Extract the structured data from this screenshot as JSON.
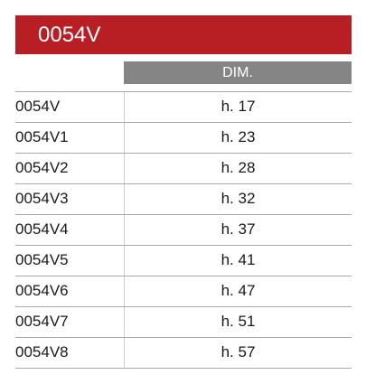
{
  "header": {
    "title": "0054V"
  },
  "table": {
    "dim_header": "DIM.",
    "rows": [
      [
        "0054V",
        "h. 17"
      ],
      [
        "0054V1",
        "h. 23"
      ],
      [
        "0054V2",
        "h. 28"
      ],
      [
        "0054V3",
        "h. 32"
      ],
      [
        "0054V4",
        "h. 37"
      ],
      [
        "0054V5",
        "h. 41"
      ],
      [
        "0054V6",
        "h. 47"
      ],
      [
        "0054V7",
        "h. 51"
      ],
      [
        "0054V8",
        "h. 57"
      ]
    ]
  }
}
